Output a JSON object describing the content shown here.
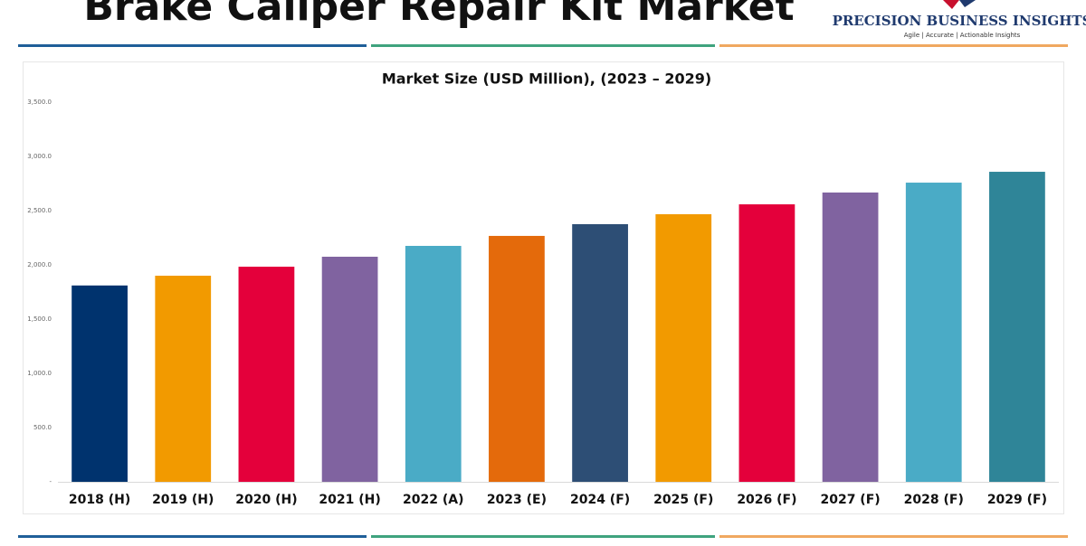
{
  "header": {
    "title": "Brake Caliper Repair Kit Market",
    "brand": "PRECISION BUSINESS INSIGHTS",
    "tagline": "Agile | Accurate | Actionable Insights"
  },
  "chart_data": {
    "type": "bar",
    "title": "Market Size (USD Million), (2023 – 2029)",
    "categories": [
      "2018 (H)",
      "2019 (H)",
      "2020 (H)",
      "2021 (H)",
      "2022 (A)",
      "2023 (E)",
      "2024 (F)",
      "2025 (F)",
      "2026 (F)",
      "2027 (F)",
      "2028 (F)",
      "2029 (F)"
    ],
    "values": [
      1810,
      1900,
      1983,
      2075,
      2175,
      2267,
      2375,
      2467,
      2558,
      2667,
      2758,
      2858
    ],
    "colors": [
      "#00336e",
      "#f29a00",
      "#e4003b",
      "#8063a0",
      "#4aabc6",
      "#e46a0b",
      "#2d4e75",
      "#f29a00",
      "#e4003b",
      "#8063a0",
      "#4aabc6",
      "#2f8598"
    ],
    "ylim": [
      0,
      3500
    ],
    "yticks": [
      {
        "value": 0,
        "label": "-"
      },
      {
        "value": 500,
        "label": "500.0"
      },
      {
        "value": 1000,
        "label": "1,000.0"
      },
      {
        "value": 1500,
        "label": "1,500.0"
      },
      {
        "value": 2000,
        "label": "2,000.0"
      },
      {
        "value": 2500,
        "label": "2,500.0"
      },
      {
        "value": 3000,
        "label": "3,000.0"
      },
      {
        "value": 3500,
        "label": "3,500.0"
      }
    ],
    "grid": false
  }
}
